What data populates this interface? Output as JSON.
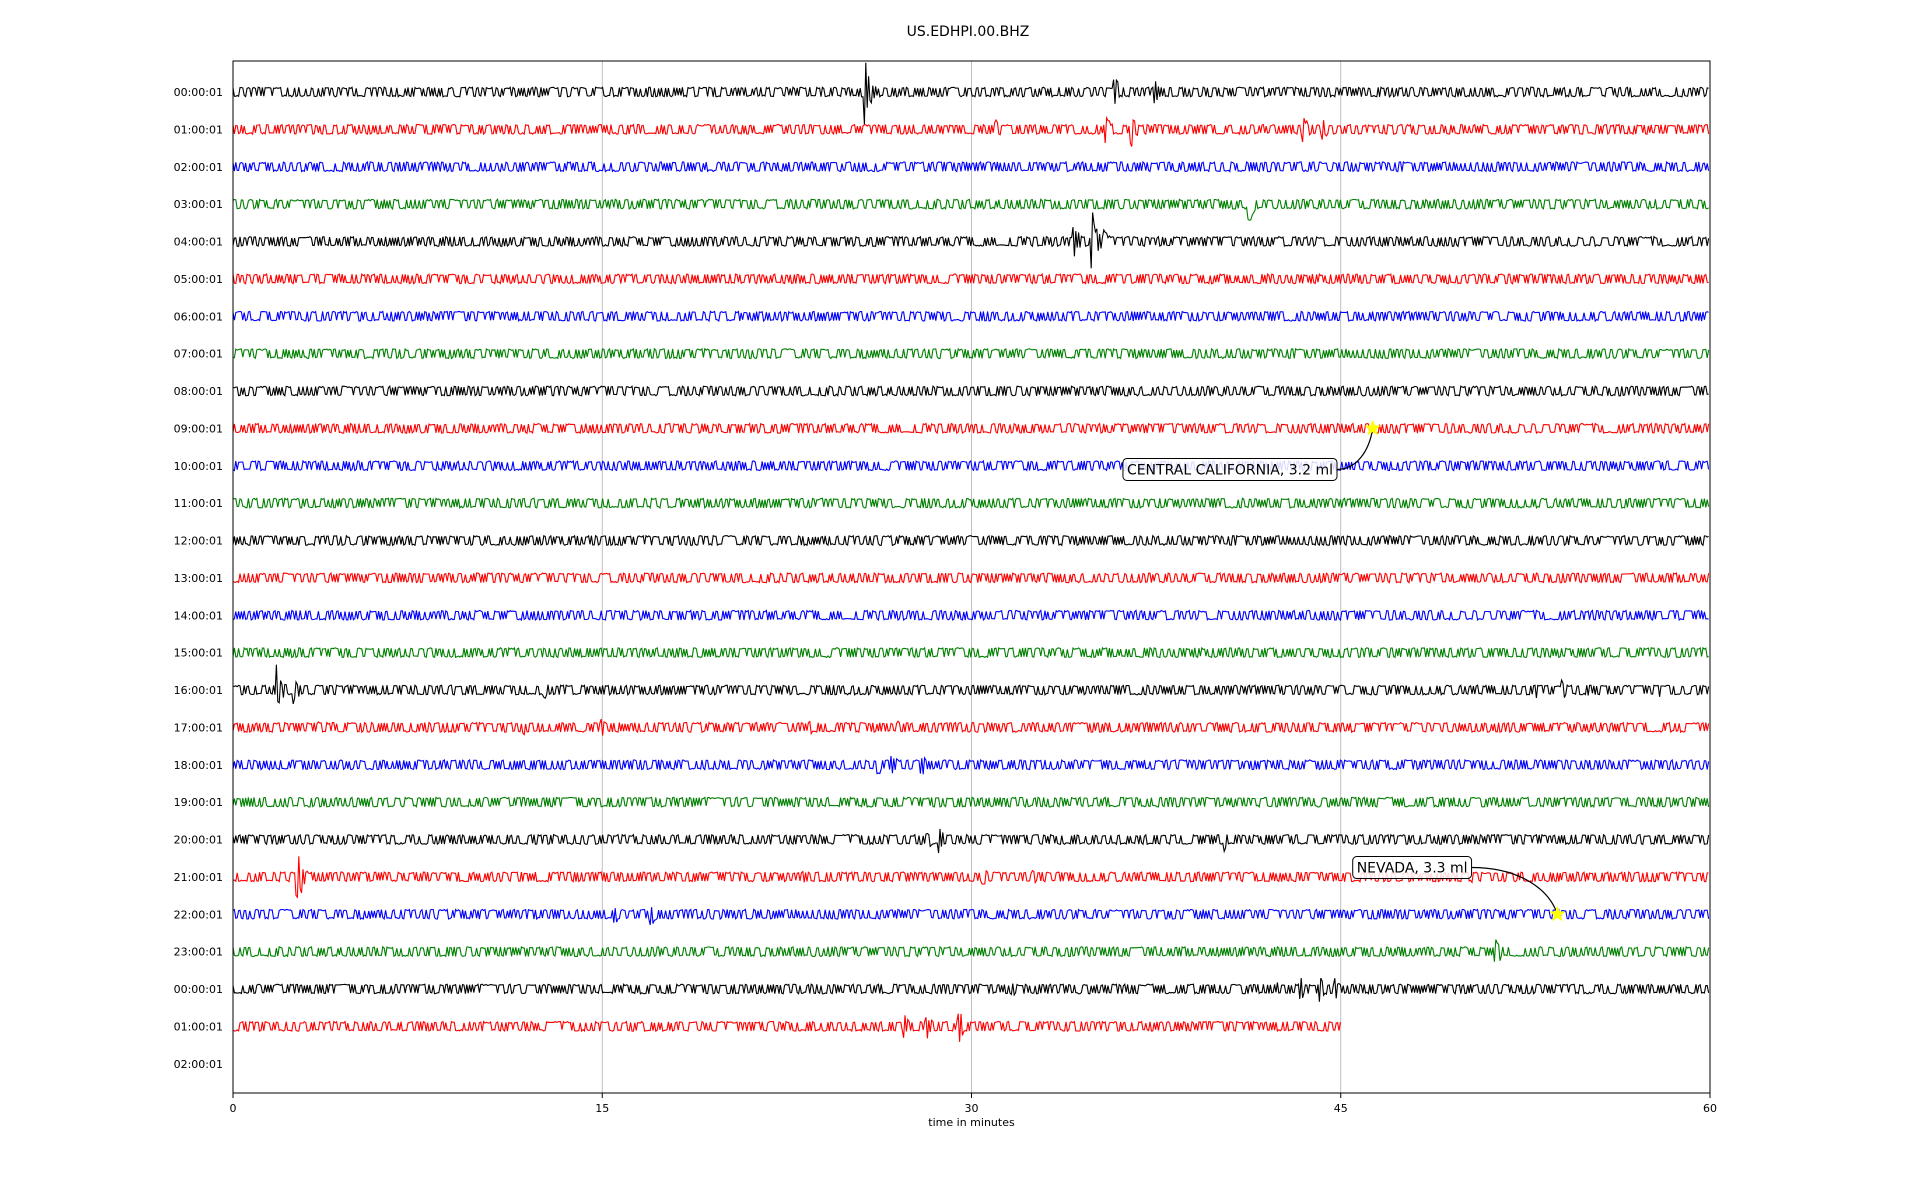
{
  "chart_data": {
    "type": "line",
    "title": "US.EDHPI.00.BHZ",
    "xlabel": "time in minutes",
    "ylabel": "",
    "xlim": [
      0,
      60
    ],
    "xticks": [
      0,
      15,
      30,
      45,
      60
    ],
    "grid": "vertical",
    "color_cycle": [
      "#000000",
      "#ff0000",
      "#0000ff",
      "#008000"
    ],
    "rows": [
      {
        "label": "00:00:01",
        "end_minute": 60,
        "events": [
          {
            "t": 25.7,
            "amp": 1.0
          },
          {
            "t": 35.8,
            "amp": 0.55
          },
          {
            "t": 37.5,
            "amp": 0.35
          }
        ]
      },
      {
        "label": "01:00:01",
        "end_minute": 60,
        "events": [
          {
            "t": 31.0,
            "amp": 0.35
          },
          {
            "t": 35.5,
            "amp": 0.45
          },
          {
            "t": 36.5,
            "amp": 0.55
          },
          {
            "t": 43.5,
            "amp": 0.45
          },
          {
            "t": 44.3,
            "amp": 0.35
          }
        ]
      },
      {
        "label": "02:00:01",
        "end_minute": 60,
        "events": []
      },
      {
        "label": "03:00:01",
        "end_minute": 60,
        "events": [
          {
            "t": 41.3,
            "amp": 0.65
          }
        ]
      },
      {
        "label": "04:00:01",
        "end_minute": 60,
        "events": [
          {
            "t": 34.2,
            "amp": 0.5
          },
          {
            "t": 34.9,
            "amp": 0.95
          },
          {
            "t": 35.4,
            "amp": 0.4
          }
        ]
      },
      {
        "label": "05:00:01",
        "end_minute": 60,
        "events": []
      },
      {
        "label": "06:00:01",
        "end_minute": 60,
        "events": []
      },
      {
        "label": "07:00:01",
        "end_minute": 60,
        "events": []
      },
      {
        "label": "08:00:01",
        "end_minute": 60,
        "events": []
      },
      {
        "label": "09:00:01",
        "end_minute": 60,
        "events": []
      },
      {
        "label": "10:00:01",
        "end_minute": 60,
        "events": []
      },
      {
        "label": "11:00:01",
        "end_minute": 60,
        "events": []
      },
      {
        "label": "12:00:01",
        "end_minute": 60,
        "events": []
      },
      {
        "label": "13:00:01",
        "end_minute": 60,
        "events": []
      },
      {
        "label": "14:00:01",
        "end_minute": 60,
        "events": []
      },
      {
        "label": "15:00:01",
        "end_minute": 60,
        "events": []
      },
      {
        "label": "16:00:01",
        "end_minute": 60,
        "events": [
          {
            "t": 1.8,
            "amp": 0.75
          },
          {
            "t": 2.5,
            "amp": 0.45
          },
          {
            "t": 12.7,
            "amp": 0.3
          },
          {
            "t": 53.0,
            "amp": 0.25
          },
          {
            "t": 54.0,
            "amp": 0.35
          },
          {
            "t": 55.0,
            "amp": 0.25
          },
          {
            "t": 58.0,
            "amp": 0.2
          }
        ]
      },
      {
        "label": "17:00:01",
        "end_minute": 60,
        "events": [
          {
            "t": 3.5,
            "amp": 0.25
          },
          {
            "t": 6.8,
            "amp": 0.2
          },
          {
            "t": 11.8,
            "amp": 0.25
          },
          {
            "t": 15.0,
            "amp": 0.3
          },
          {
            "t": 23.5,
            "amp": 0.2
          },
          {
            "t": 27.0,
            "amp": 0.2
          }
        ]
      },
      {
        "label": "18:00:01",
        "end_minute": 60,
        "events": [
          {
            "t": 17.3,
            "amp": 0.2
          },
          {
            "t": 20.8,
            "amp": 0.2
          },
          {
            "t": 26.2,
            "amp": 0.4
          },
          {
            "t": 26.8,
            "amp": 0.35
          },
          {
            "t": 28.0,
            "amp": 0.35
          }
        ]
      },
      {
        "label": "19:00:01",
        "end_minute": 60,
        "events": []
      },
      {
        "label": "20:00:01",
        "end_minute": 60,
        "events": [
          {
            "t": 28.2,
            "amp": 0.35
          },
          {
            "t": 28.7,
            "amp": 0.4
          },
          {
            "t": 40.3,
            "amp": 0.35
          }
        ]
      },
      {
        "label": "21:00:01",
        "end_minute": 60,
        "events": [
          {
            "t": 2.6,
            "amp": 1.1
          },
          {
            "t": 20.7,
            "amp": 0.2
          },
          {
            "t": 23.2,
            "amp": 0.25
          },
          {
            "t": 30.5,
            "amp": 0.3
          },
          {
            "t": 32.5,
            "amp": 0.3
          },
          {
            "t": 50.4,
            "amp": 0.2
          }
        ]
      },
      {
        "label": "22:00:01",
        "end_minute": 60,
        "events": [
          {
            "t": 12.0,
            "amp": 0.2
          },
          {
            "t": 15.5,
            "amp": 0.4
          },
          {
            "t": 17.0,
            "amp": 0.45
          },
          {
            "t": 20.9,
            "amp": 0.2
          }
        ]
      },
      {
        "label": "23:00:01",
        "end_minute": 60,
        "events": [
          {
            "t": 51.3,
            "amp": 0.55
          }
        ]
      },
      {
        "label": "00:00:01",
        "end_minute": 60,
        "events": [
          {
            "t": 31.7,
            "amp": 0.25
          },
          {
            "t": 42.5,
            "amp": 0.2
          },
          {
            "t": 43.4,
            "amp": 0.35
          },
          {
            "t": 44.2,
            "amp": 0.5
          },
          {
            "t": 44.8,
            "amp": 0.35
          }
        ]
      },
      {
        "label": "01:00:01",
        "end_minute": 45,
        "events": [
          {
            "t": 27.3,
            "amp": 0.35
          },
          {
            "t": 28.2,
            "amp": 0.4
          },
          {
            "t": 29.5,
            "amp": 0.6
          }
        ]
      },
      {
        "label": "02:00:01",
        "end_minute": 0,
        "events": []
      }
    ],
    "annotations": [
      {
        "text": "CENTRAL CALIFORNIA, 3.2 ml",
        "row": 9,
        "t": 46.3,
        "marker": "star",
        "marker_color": "#ffff00",
        "label_row": 10.1,
        "label_t": 40.5
      },
      {
        "text": "NEVADA, 3.3 ml",
        "row": 22,
        "t": 53.8,
        "marker": "star",
        "marker_color": "#ffff00",
        "label_row": 20.75,
        "label_t": 47.9
      }
    ]
  }
}
